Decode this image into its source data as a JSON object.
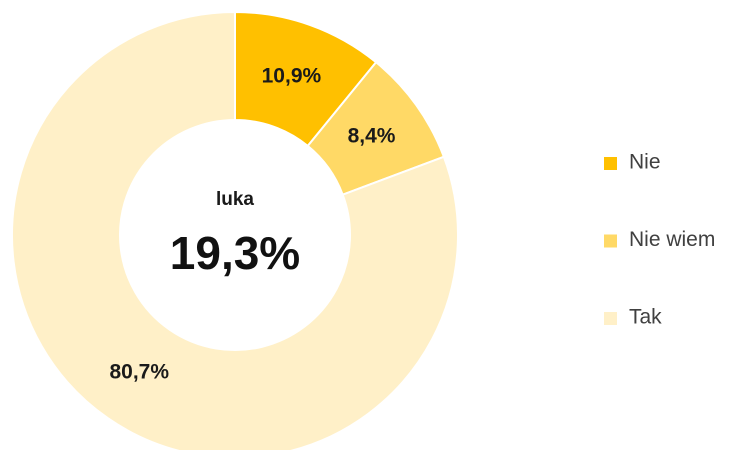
{
  "chart_data": {
    "type": "donut",
    "categories": [
      "Nie",
      "Nie wiem",
      "Tak"
    ],
    "values": [
      10.9,
      8.4,
      80.7
    ],
    "value_labels": [
      "10,9%",
      "8,4%",
      "80,7%"
    ],
    "colors": [
      "#ffc000",
      "#ffd966",
      "#fff0c8"
    ],
    "center_title": "luka",
    "center_text": "19,3%",
    "legend": "right"
  }
}
